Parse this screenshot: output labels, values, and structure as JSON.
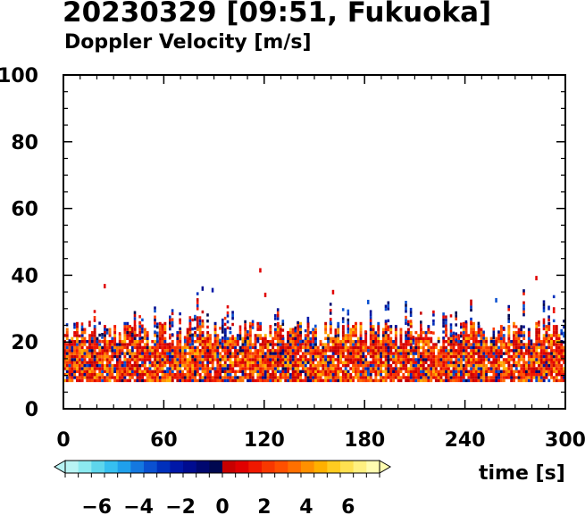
{
  "chart_data": {
    "type": "heatmap",
    "title": "20230329 [09:51, Fukuoka]",
    "subtitle": "Doppler Velocity [m/s]",
    "xlabel": "time [s]",
    "xlim": [
      0,
      300
    ],
    "ylim": [
      0,
      100
    ],
    "xticks": [
      "0",
      "60",
      "120",
      "180",
      "240",
      "300"
    ],
    "xtick_values": [
      0,
      60,
      120,
      180,
      240,
      300
    ],
    "yticks": [
      "0",
      "20",
      "40",
      "60",
      "80",
      "100"
    ],
    "ytick_values": [
      0,
      20,
      40,
      60,
      80,
      100
    ],
    "grid": false,
    "echo_base": 8,
    "echo_main_top_min": 18,
    "echo_main_top_max": 26,
    "echo_max_height": 45,
    "colorbar": {
      "range": [
        -7.5,
        7.5
      ],
      "tick_labels": [
        "−6",
        "−4",
        "−2",
        "0",
        "2",
        "4",
        "6"
      ],
      "tick_values": [
        -6,
        -4,
        -2,
        0,
        2,
        4,
        6
      ],
      "colors": [
        "#b8f4f4",
        "#8ceaf0",
        "#5ed6ec",
        "#36bff0",
        "#1fa0ec",
        "#1478e0",
        "#0a50d0",
        "#0030bc",
        "#0018a8",
        "#000c90",
        "#000870",
        "#000850",
        "#c80000",
        "#e00000",
        "#f01800",
        "#f83800",
        "#ff5000",
        "#ff7000",
        "#ff9000",
        "#ffb000",
        "#ffcc20",
        "#ffe050",
        "#fff080",
        "#fffcb0"
      ]
    }
  }
}
